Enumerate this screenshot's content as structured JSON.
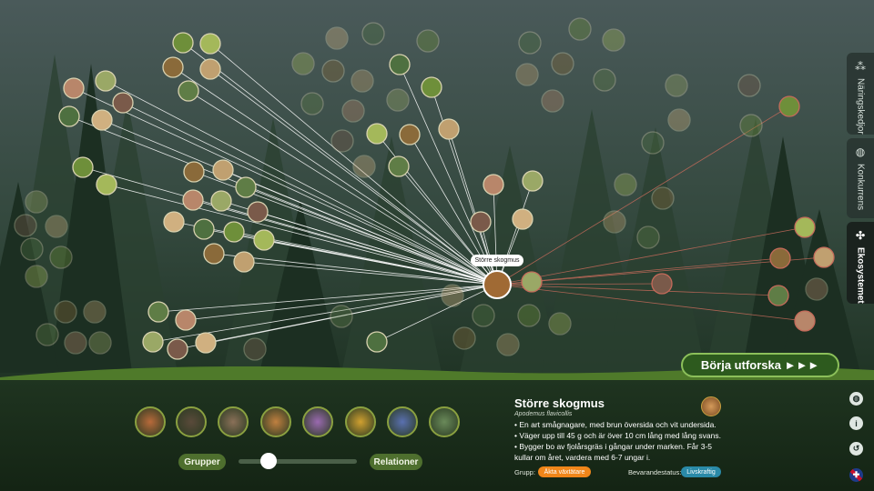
{
  "colors": {
    "accent_green": "#4e6f2e",
    "group_tag": "#f0861a",
    "status_tag": "#2a8aa8",
    "insect_line": "#ffffff",
    "predator_line": "#c46a5a"
  },
  "side_tabs": [
    {
      "label": "Näringskedjor",
      "icon": "triangle-network-icon"
    },
    {
      "label": "Konkurrens",
      "icon": "globe-icon"
    },
    {
      "label": "Ekosystemet",
      "icon": "network-icon"
    }
  ],
  "node_tooltip": "Större skogmus",
  "cta": {
    "label": "Börja utforska ►►►"
  },
  "controls": {
    "groups_label": "Grupper",
    "relations_label": "Relationer"
  },
  "slider": {
    "value": 0.2
  },
  "species_bar": [
    "fox-thumb",
    "blackbird-thumb",
    "owl-thumb",
    "squirrel-thumb",
    "bee-thumb",
    "fungus-thumb",
    "blueberry-thumb",
    "moss-thumb"
  ],
  "info": {
    "title": "Större skogmus",
    "latin": "Apodemus flavicollis",
    "bullets": [
      "En art smågnagare, med brun översida och vit undersida.",
      "Väger upp till 45 g och är över 10 cm lång med lång svans.",
      "Bygger bo av fjolårsgräs i gångar under marken. Får 3-5 kullar om året, vardera med 6-7 ungar i."
    ],
    "group_label": "Grupp:",
    "group_value": "Äkta växtätare",
    "status_label": "Bevarandestatus:",
    "status_value": "Livskraftig"
  },
  "right_icons": [
    "globe-icon",
    "info-icon",
    "reset-icon",
    "uk-flag-icon"
  ]
}
